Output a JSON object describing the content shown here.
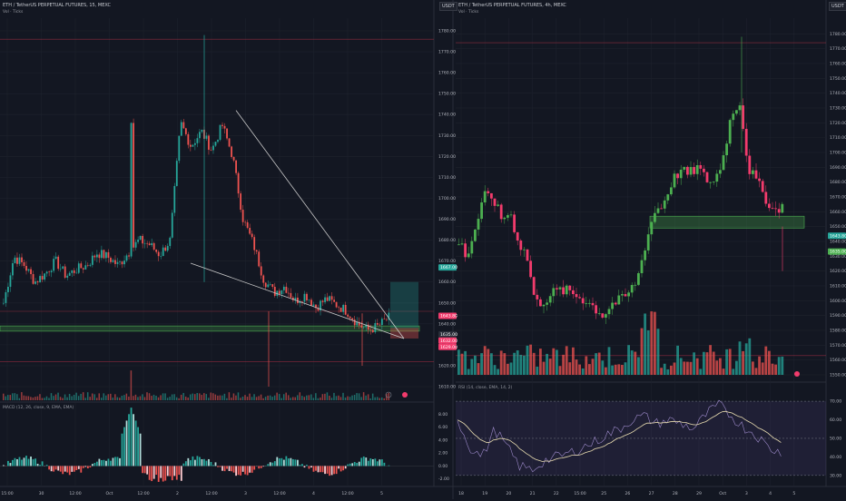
{
  "colors": {
    "bg": "#131722",
    "grid": "#1e222d",
    "up": "#26a69a",
    "down": "#ef5350",
    "upBright": "#4caf50",
    "downBright": "#f23b6c",
    "zone": "#1b5e20",
    "trend": "#c8c8c8"
  },
  "left": {
    "title": "ETH / TetherUS PERPETUAL FUTURES, 15, MEXC",
    "vol_label": "Vol · Ticks",
    "currency_button": "USDT",
    "macd_label": "MACD (12, 26, close, 9, EMA, EMA)",
    "y_ticks": [
      "1780.00",
      "1770.00",
      "1760.00",
      "1750.00",
      "1740.00",
      "1730.00",
      "1720.00",
      "1710.00",
      "1700.00",
      "1690.00",
      "1680.00",
      "1670.00",
      "1660.00",
      "1650.00",
      "1640.00",
      "1630.00",
      "1620.00",
      "1610.00"
    ],
    "price_tags": [
      "1667.00",
      "1643.80",
      "1635.00",
      "1632.00",
      "1629.00"
    ],
    "macd_ticks": [
      "8.00",
      "6.00",
      "4.00",
      "2.00",
      "0.00",
      "-2.00"
    ],
    "x_ticks": [
      "15:00",
      "30",
      "12:00",
      "Oct",
      "12:00",
      "2",
      "12:00",
      "3",
      "12:00",
      "4",
      "12:00",
      "5"
    ]
  },
  "right": {
    "title": "ETH / TetherUS PERPETUAL FUTURES, 4h, MEXC",
    "vol_label": "Vol · Ticks",
    "currency_button": "USDT",
    "rsi_label": "RSI (14, close, EMA, 14, 2)",
    "y_ticks": [
      "1780.00",
      "1770.00",
      "1760.00",
      "1750.00",
      "1740.00",
      "1730.00",
      "1720.00",
      "1710.00",
      "1700.00",
      "1690.00",
      "1680.00",
      "1670.00",
      "1660.00",
      "1650.00",
      "1640.00",
      "1630.00",
      "1620.00",
      "1610.00",
      "1600.00",
      "1590.00",
      "1580.00",
      "1570.00",
      "1560.00",
      "1550.00"
    ],
    "price_tags": [
      "1643.80",
      "1635.00"
    ],
    "rsi_ticks": [
      "70.00",
      "60.00",
      "50.00",
      "40.00",
      "30.00"
    ],
    "x_ticks": [
      "18",
      "19",
      "20",
      "21",
      "22",
      "15:00",
      "25",
      "26",
      "27",
      "28",
      "29",
      "Oct",
      "3",
      "4",
      "5"
    ]
  },
  "chart_data": [
    {
      "type": "candlestick",
      "title": "ETH / TetherUS PERPETUAL FUTURES, 15, MEXC",
      "ylim": [
        1610,
        1780
      ],
      "x": [
        "15:00",
        "30",
        "12:00",
        "Oct",
        "12:00",
        "2",
        "12:00",
        "3",
        "12:00",
        "4",
        "12:00",
        "5"
      ],
      "close_path": [
        1650,
        1672,
        1668,
        1660,
        1664,
        1670,
        1663,
        1666,
        1668,
        1674,
        1672,
        1668,
        1674,
        1680,
        1678,
        1673,
        1680,
        1736,
        1725,
        1732,
        1723,
        1735,
        1720,
        1690,
        1678,
        1661,
        1655,
        1658,
        1651,
        1654,
        1648,
        1652,
        1649,
        1646,
        1640,
        1637,
        1639,
        1643
      ],
      "annotations": [
        "descending trendline",
        "support zone 1637-1639"
      ]
    },
    {
      "type": "candlestick",
      "title": "ETH / TetherUS PERPETUAL FUTURES, 4h, MEXC",
      "ylim": [
        1550,
        1780
      ],
      "x": [
        "18",
        "19",
        "20",
        "21",
        "22",
        "15:00",
        "25",
        "26",
        "27",
        "28",
        "29",
        "Oct",
        "3",
        "4",
        "5"
      ],
      "close_path": [
        1640,
        1630,
        1650,
        1670,
        1670,
        1655,
        1660,
        1640,
        1630,
        1598,
        1600,
        1605,
        1607,
        1606,
        1603,
        1600,
        1595,
        1590,
        1598,
        1600,
        1605,
        1615,
        1640,
        1660,
        1665,
        1680,
        1688,
        1685,
        1690,
        1682,
        1680,
        1695,
        1725,
        1735,
        1690,
        1680,
        1670,
        1660,
        1665
      ],
      "annotations": [
        "support zone 1650-1655"
      ]
    },
    {
      "type": "line",
      "title": "RSI (14, close, EMA, 14, 2)",
      "ylim": [
        30,
        70
      ],
      "series": [
        {
          "name": "RSI",
          "values": [
            60,
            45,
            40,
            55,
            45,
            35,
            33,
            38,
            40,
            42,
            45,
            48,
            52,
            55,
            60,
            62,
            58,
            60,
            58,
            55,
            63,
            68,
            62,
            56,
            52,
            45,
            42
          ]
        }
      ]
    }
  ]
}
